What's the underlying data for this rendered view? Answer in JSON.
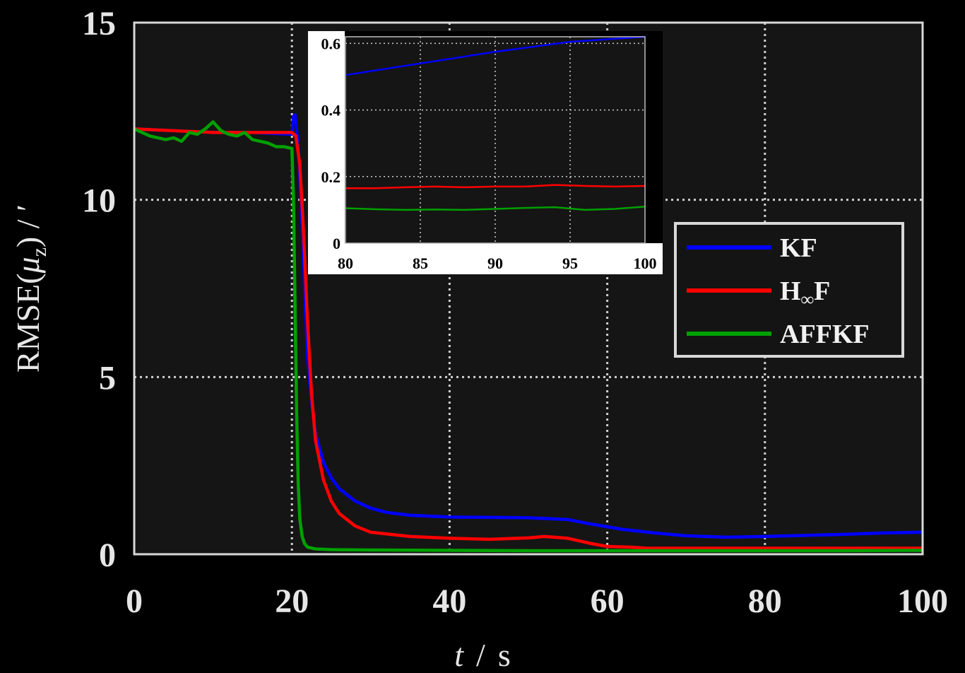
{
  "chart_data": {
    "type": "line",
    "xlabel_italic": "t",
    "xlabel_sep": "/",
    "xlabel_unit": "s",
    "ylabel_prefix": "RMSE(",
    "ylabel_mu": "μ",
    "ylabel_sub": "z",
    "ylabel_suffix": ")  /  ′",
    "xlim": [
      0,
      100
    ],
    "ylim": [
      0,
      15
    ],
    "xticks": [
      "0",
      "20",
      "40",
      "60",
      "80",
      "100"
    ],
    "yticks": [
      "0",
      "5",
      "10",
      "15"
    ],
    "grid": true,
    "legend_position": "right",
    "legend": {
      "kf": "KF",
      "hinf_prefix": "H",
      "hinf_sub": "∞",
      "hinf_suffix": "F",
      "affkf": "AFFKF"
    },
    "colors": {
      "KF": "#0000ff",
      "HinfF": "#ff0000",
      "AFFKF": "#00a000"
    },
    "series": [
      {
        "key": "KF",
        "color": "#0000ff",
        "x": [
          0,
          5,
          10,
          15,
          20,
          20.2,
          20.4,
          20.8,
          21.2,
          21.6,
          22,
          22.5,
          23,
          24,
          25,
          26,
          28,
          30,
          32,
          35,
          40,
          45,
          50,
          55,
          58,
          62,
          66,
          70,
          75,
          80,
          85,
          90,
          95,
          100
        ],
        "y": [
          12.0,
          11.95,
          11.9,
          11.9,
          11.85,
          12.35,
          12.4,
          11.5,
          9.8,
          7.5,
          5.5,
          4.3,
          3.4,
          2.6,
          2.15,
          1.85,
          1.5,
          1.3,
          1.18,
          1.1,
          1.05,
          1.04,
          1.03,
          0.98,
          0.85,
          0.7,
          0.6,
          0.52,
          0.48,
          0.5,
          0.53,
          0.56,
          0.6,
          0.62
        ]
      },
      {
        "key": "HinfF",
        "color": "#ff0000",
        "x": [
          0,
          5,
          10,
          15,
          20,
          20.5,
          21,
          21.5,
          22,
          22.5,
          23,
          24,
          25,
          26,
          28,
          30,
          35,
          40,
          45,
          50,
          52,
          55,
          58,
          60,
          63,
          65,
          70,
          80,
          90,
          100
        ],
        "y": [
          12.0,
          11.95,
          11.9,
          11.9,
          11.9,
          11.8,
          11.0,
          9.0,
          6.5,
          4.5,
          3.2,
          2.1,
          1.5,
          1.15,
          0.8,
          0.62,
          0.5,
          0.45,
          0.42,
          0.46,
          0.5,
          0.45,
          0.3,
          0.22,
          0.2,
          0.17,
          0.17,
          0.17,
          0.17,
          0.17
        ]
      },
      {
        "key": "AFFKF",
        "color": "#00a000",
        "x": [
          0,
          2,
          4,
          5,
          6,
          7,
          8,
          9,
          10,
          11,
          12,
          13,
          14,
          15,
          16,
          17,
          18,
          19,
          20,
          20.2,
          20.4,
          20.6,
          20.8,
          21,
          21.3,
          21.6,
          22,
          23,
          25,
          30,
          40,
          50,
          60,
          70,
          80,
          90,
          100
        ],
        "y": [
          12.0,
          11.8,
          11.7,
          11.75,
          11.65,
          11.9,
          11.85,
          12.0,
          12.2,
          11.95,
          11.85,
          11.8,
          11.9,
          11.7,
          11.65,
          11.6,
          11.5,
          11.5,
          11.45,
          10.0,
          7.0,
          4.0,
          2.0,
          1.0,
          0.5,
          0.3,
          0.2,
          0.15,
          0.13,
          0.12,
          0.11,
          0.1,
          0.1,
          0.1,
          0.1,
          0.1,
          0.11
        ]
      }
    ],
    "inset": {
      "xlim": [
        80,
        100
      ],
      "ylim": [
        0,
        0.62
      ],
      "xticks": [
        "80",
        "85",
        "90",
        "95",
        "100"
      ],
      "yticks": [
        "0",
        "0.2",
        "0.4",
        "0.6"
      ],
      "series": [
        {
          "key": "KF",
          "color": "#0000ff",
          "x": [
            80,
            85,
            90,
            95,
            100
          ],
          "y": [
            0.505,
            0.54,
            0.575,
            0.605,
            0.62
          ]
        },
        {
          "key": "HinfF",
          "color": "#ff0000",
          "x": [
            80,
            82,
            84,
            86,
            88,
            90,
            92,
            94,
            96,
            98,
            100
          ],
          "y": [
            0.165,
            0.165,
            0.168,
            0.17,
            0.168,
            0.17,
            0.17,
            0.175,
            0.172,
            0.17,
            0.172
          ]
        },
        {
          "key": "AFFKF",
          "color": "#00a000",
          "x": [
            80,
            82,
            84,
            86,
            88,
            90,
            92,
            94,
            96,
            98,
            100
          ],
          "y": [
            0.105,
            0.102,
            0.1,
            0.101,
            0.1,
            0.103,
            0.106,
            0.108,
            0.1,
            0.103,
            0.11
          ]
        }
      ]
    }
  }
}
